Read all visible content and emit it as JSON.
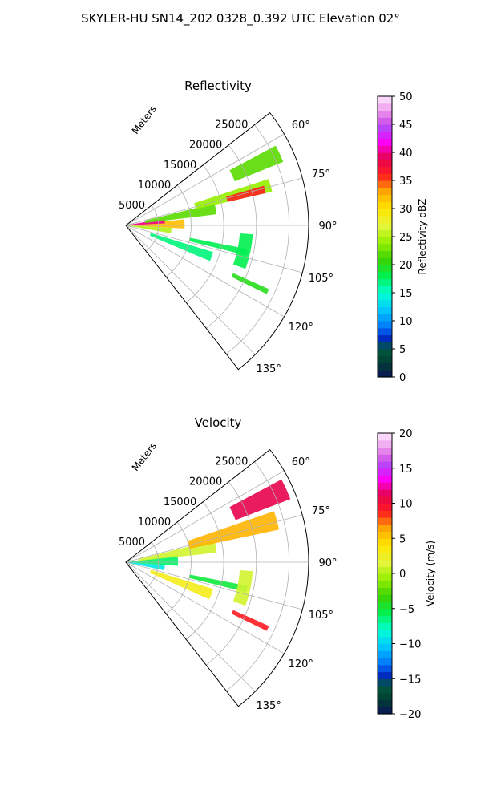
{
  "suptitle": "SKYLER-HU  SN14_202  0328_0.392 UTC Elevation 02°",
  "chart_data": [
    {
      "type": "polar-sector-ppi",
      "title": "Reflectivity",
      "range_label": "Meters",
      "radial_ticks": [
        5000,
        10000,
        15000,
        20000,
        25000
      ],
      "range_max": 28000,
      "azimuth_ticks": [
        "60°",
        "75°",
        "90°",
        "105°",
        "120°",
        "135°"
      ],
      "azimuth_range_deg": [
        52,
        142
      ],
      "colorbar": {
        "label": "Reflectivity dBZ",
        "min": 0,
        "max": 50,
        "ticks": [
          "0",
          "5",
          "10",
          "15",
          "20",
          "25",
          "30",
          "35",
          "40",
          "45",
          "50"
        ]
      },
      "echoes": [
        {
          "az": [
            84,
            93
          ],
          "range": [
            0,
            9000
          ],
          "value": 32
        },
        {
          "az": [
            80,
            87
          ],
          "range": [
            500,
            6000
          ],
          "value": 40
        },
        {
          "az": [
            93,
            100
          ],
          "range": [
            0,
            7000
          ],
          "value": 25
        },
        {
          "az": [
            76,
            83
          ],
          "range": [
            3000,
            14000
          ],
          "value": 22
        },
        {
          "az": [
            72,
            77
          ],
          "range": [
            11000,
            23000
          ],
          "value": 24
        },
        {
          "az": [
            74,
            77
          ],
          "range": [
            16000,
            22000
          ],
          "value": 36
        },
        {
          "az": [
            62,
            68
          ],
          "range": [
            18000,
            26000
          ],
          "value": 22
        },
        {
          "az": [
            101,
            104
          ],
          "range": [
            10000,
            19000
          ],
          "value": 18
        },
        {
          "az": [
            107,
            113
          ],
          "range": [
            4000,
            14000
          ],
          "value": 17
        },
        {
          "az": [
            114,
            116
          ],
          "range": [
            18000,
            24000
          ],
          "value": 20
        },
        {
          "az": [
            94,
            110
          ],
          "range": [
            17500,
            19500
          ],
          "value": 18
        }
      ]
    },
    {
      "type": "polar-sector-ppi",
      "title": "Velocity",
      "range_label": "Meters",
      "radial_ticks": [
        5000,
        10000,
        15000,
        20000,
        25000
      ],
      "range_max": 28000,
      "azimuth_ticks": [
        "60°",
        "75°",
        "90°",
        "105°",
        "120°",
        "135°"
      ],
      "azimuth_range_deg": [
        52,
        142
      ],
      "colorbar": {
        "label": "Velocity (m/s)",
        "min": -20,
        "max": 20,
        "ticks": [
          "−20",
          "−15",
          "−10",
          "−5",
          "0",
          "5",
          "10",
          "15",
          "20"
        ]
      },
      "echoes": [
        {
          "az": [
            82,
            94
          ],
          "range": [
            0,
            8000
          ],
          "value": -6
        },
        {
          "az": [
            94,
            102
          ],
          "range": [
            0,
            6000
          ],
          "value": -9
        },
        {
          "az": [
            76,
            84
          ],
          "range": [
            2000,
            14000
          ],
          "value": 1
        },
        {
          "az": [
            71,
            78
          ],
          "range": [
            10000,
            24000
          ],
          "value": 6
        },
        {
          "az": [
            62,
            69
          ],
          "range": [
            18000,
            27000
          ],
          "value": 11
        },
        {
          "az": [
            101,
            104
          ],
          "range": [
            10000,
            19000
          ],
          "value": -5
        },
        {
          "az": [
            107,
            114
          ],
          "range": [
            4000,
            14000
          ],
          "value": 3
        },
        {
          "az": [
            114,
            116
          ],
          "range": [
            18000,
            24000
          ],
          "value": 9
        },
        {
          "az": [
            94,
            110
          ],
          "range": [
            17500,
            19500
          ],
          "value": 1
        }
      ]
    }
  ]
}
